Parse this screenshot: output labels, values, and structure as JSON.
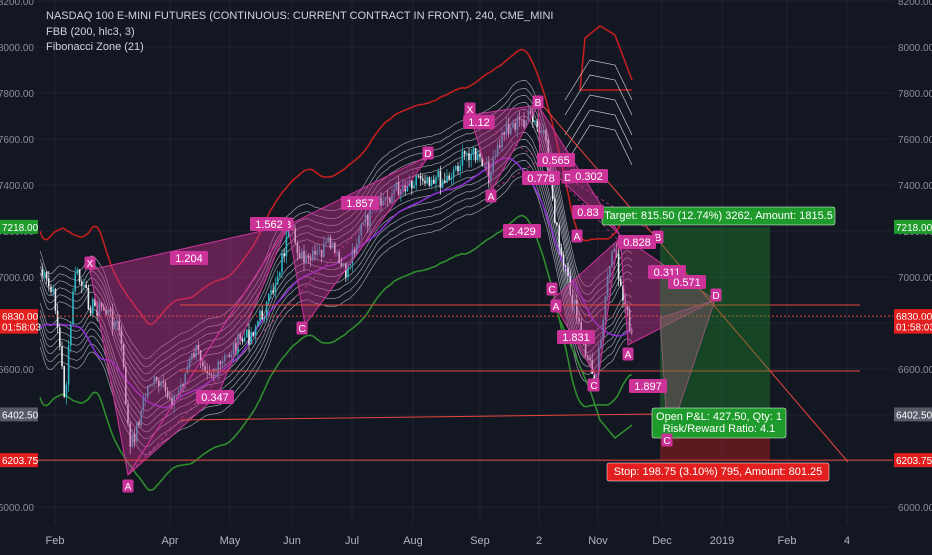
{
  "header": {
    "title": "NASDAQ 100 E-MINI FUTURES (CONTINUOUS: CURRENT CONTRACT IN FRONT), 240, CME_MINI",
    "indicator_1": "FBB (200, hlc3, 3)",
    "indicator_2": "Fibonacci Zone (21)"
  },
  "colors": {
    "background": "#131722",
    "grid": "#1e2330",
    "text": "#d1d4dc",
    "pattern_fill": "#c2318e",
    "pattern_label": "#cc3399",
    "band_upper": "#c21f1f",
    "band_lower": "#2f8c2f",
    "band_mid": "#8b2fd0",
    "target_green": "#1e9b2c",
    "stop_red": "#e21e1e",
    "price_line": "#e8453c"
  },
  "chart_data": {
    "type": "line",
    "xlabel": "",
    "ylabel": "",
    "x_ticks": [
      "Feb",
      "Apr",
      "May",
      "Jun",
      "Jul",
      "Aug",
      "Sep",
      "2",
      "Nov",
      "Dec",
      "2019",
      "Feb",
      "4"
    ],
    "y_ticks": [
      "6000.00",
      "6200.00",
      "6400.00",
      "6600.00",
      "6800.00",
      "7000.00",
      "7200.00",
      "7400.00",
      "7600.00",
      "7800.00",
      "8000.00",
      "8200.00"
    ],
    "ylim": [
      5940,
      8210
    ],
    "price_tags": [
      {
        "label": "7218.00",
        "value": 7218,
        "color": "#1e9b2c"
      },
      {
        "label": "6830.00",
        "value": 6830,
        "color": "#e21e1e"
      },
      {
        "label": "01:58:03",
        "value": 6784,
        "color": "#e21e1e"
      },
      {
        "label": "6402.50",
        "value": 6402.5,
        "color": "#555a66"
      },
      {
        "label": "6203.75",
        "value": 6203.75,
        "color": "#e21e1e"
      }
    ],
    "pattern_labels": [
      "X",
      "A",
      "B",
      "C",
      "D",
      "X",
      "B",
      "A",
      "C",
      "D",
      "A",
      "B",
      "C",
      "D",
      "A",
      "C",
      "A",
      "C"
    ],
    "ratio_labels": [
      "1.204",
      "1.562",
      "1.857",
      "0.347",
      "1.12",
      "0.565",
      "0.778",
      "0.302",
      "2.429",
      "0.83",
      "0.828",
      "0.311",
      "0.571",
      "1.831",
      "1.897"
    ],
    "position": {
      "target": "Target: 815.50 (12.74%) 3262, Amount: 1815.5",
      "open_pnl": "Open P&L: 427.50, Qty: 1",
      "risk_reward": "Risk/Reward Ratio: 4.1",
      "stop": "Stop: 198.75 (3.10%) 795, Amount: 801.25",
      "entry": 6402.5,
      "target_price": 7218,
      "stop_price": 6203.75
    }
  }
}
